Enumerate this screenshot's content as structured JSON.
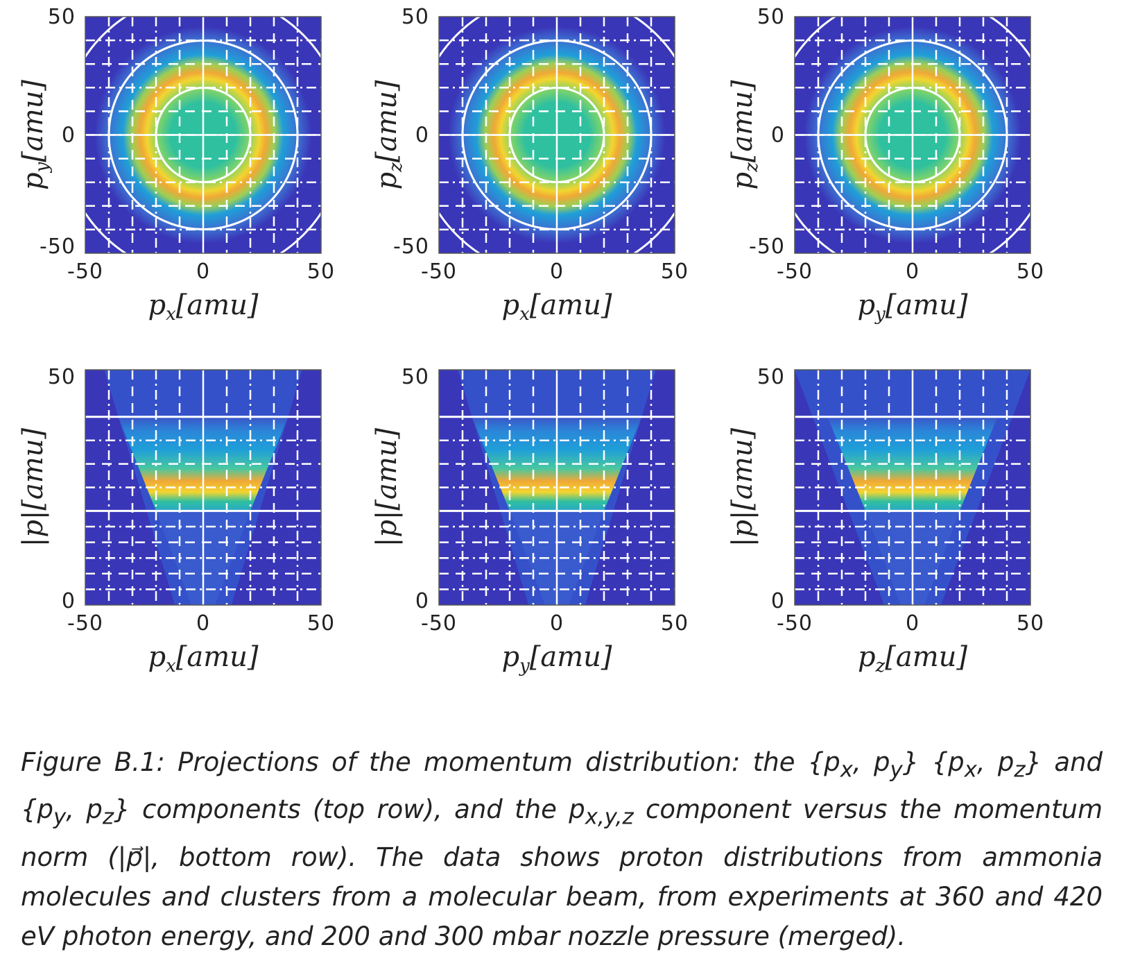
{
  "panels": [
    {
      "id": "top-1",
      "row": "top",
      "xlabel": {
        "main": "p",
        "sub": "x",
        "unit": "[amu]"
      },
      "ylabel": {
        "main": "p",
        "sub": "y",
        "unit": "[amu]"
      },
      "xticks": [
        "-50",
        "0",
        "50"
      ],
      "yticks": [
        "50",
        "0",
        "-50"
      ]
    },
    {
      "id": "top-2",
      "row": "top",
      "xlabel": {
        "main": "p",
        "sub": "x",
        "unit": "[amu]"
      },
      "ylabel": {
        "main": "p",
        "sub": "z",
        "unit": "[amu]"
      },
      "xticks": [
        "-50",
        "0",
        "50"
      ],
      "yticks": [
        "50",
        "0",
        "-50"
      ]
    },
    {
      "id": "top-3",
      "row": "top",
      "xlabel": {
        "main": "p",
        "sub": "y",
        "unit": "[amu]"
      },
      "ylabel": {
        "main": "p",
        "sub": "z",
        "unit": "[amu]"
      },
      "xticks": [
        "-50",
        "0",
        "50"
      ],
      "yticks": [
        "50",
        "0",
        "-50"
      ]
    },
    {
      "id": "bottom-1",
      "row": "bottom",
      "xlabel": {
        "main": "p",
        "sub": "x",
        "unit": "[amu]"
      },
      "ylabel": {
        "main": "|p|",
        "sub": "",
        "unit": "[amu]"
      },
      "xticks": [
        "-50",
        "0",
        "50"
      ],
      "yticks": [
        "50",
        "0"
      ]
    },
    {
      "id": "bottom-2",
      "row": "bottom",
      "xlabel": {
        "main": "p",
        "sub": "y",
        "unit": "[amu]"
      },
      "ylabel": {
        "main": "|p|",
        "sub": "",
        "unit": "[amu]"
      },
      "xticks": [
        "-50",
        "0",
        "50"
      ],
      "yticks": [
        "50",
        "0"
      ]
    },
    {
      "id": "bottom-3",
      "row": "bottom",
      "xlabel": {
        "main": "p",
        "sub": "z",
        "unit": "[amu]"
      },
      "ylabel": {
        "main": "|p|",
        "sub": "",
        "unit": "[amu]"
      },
      "xticks": [
        "-50",
        "0",
        "50"
      ],
      "yticks": [
        "50",
        "0"
      ]
    }
  ],
  "chart_data": [
    {
      "type": "heatmap",
      "xlabel": "p_x [amu]",
      "ylabel": "p_y [amu]",
      "xlim": [
        -50,
        50
      ],
      "ylim": [
        -50,
        50
      ],
      "ring_peak_radius": 25,
      "overlay_circle_radii": [
        20,
        40,
        60
      ]
    },
    {
      "type": "heatmap",
      "xlabel": "p_x [amu]",
      "ylabel": "p_z [amu]",
      "xlim": [
        -50,
        50
      ],
      "ylim": [
        -50,
        50
      ],
      "ring_peak_radius": 25,
      "overlay_circle_radii": [
        20,
        40,
        60
      ]
    },
    {
      "type": "heatmap",
      "xlabel": "p_y [amu]",
      "ylabel": "p_z [amu]",
      "xlim": [
        -50,
        50
      ],
      "ylim": [
        -50,
        50
      ],
      "ring_peak_radius": 25,
      "overlay_circle_radii": [
        20,
        40,
        60
      ]
    },
    {
      "type": "heatmap",
      "xlabel": "p_x [amu]",
      "ylabel": "|p| [amu]",
      "xlim": [
        -50,
        50
      ],
      "ylim": [
        0,
        50
      ],
      "peak_norm": 27,
      "overlay_hlines": [
        20,
        40
      ]
    },
    {
      "type": "heatmap",
      "xlabel": "p_y [amu]",
      "ylabel": "|p| [amu]",
      "xlim": [
        -50,
        50
      ],
      "ylim": [
        0,
        50
      ],
      "peak_norm": 27,
      "overlay_hlines": [
        20,
        40
      ]
    },
    {
      "type": "heatmap",
      "xlabel": "p_z [amu]",
      "ylabel": "|p| [amu]",
      "xlim": [
        -50,
        50
      ],
      "ylim": [
        0,
        50
      ],
      "peak_norm": 27,
      "overlay_hlines": [
        20,
        40
      ]
    }
  ],
  "colormap": {
    "low": "#3a36b8",
    "mid": "#1f9fd8",
    "teal": "#2fc0a0",
    "high_yellow": "#f2d530",
    "orange": "#f0a836",
    "overlay": "#ffffff"
  },
  "caption": {
    "lead": "Figure B.1: Projections of the momentum distribution: the ",
    "set1": "{p",
    "set1sub1": "x",
    "set1mid": ", p",
    "set1sub2": "y",
    "set1end": "} ",
    "set2": "{p",
    "set2sub1": "x",
    "set2mid": ", p",
    "set2sub2": "z",
    "set2end": "}",
    "and1": " and ",
    "set3": "{p",
    "set3sub1": "y",
    "set3mid": ", p",
    "set3sub2": "z",
    "set3end": "}",
    "part2": " components (top row), and the ",
    "pxyz": "p",
    "pxyzsub": "x,y,z",
    "part3": " component versus the momentum norm (",
    "norm": "|p⃗|",
    "part4": ", bottom row). The data shows proton distributions from ammonia molecules and clusters from a molecular beam, from experiments at 360 and 420 eV photon energy, and 200 and 300 mbar nozzle pressure (merged)."
  }
}
